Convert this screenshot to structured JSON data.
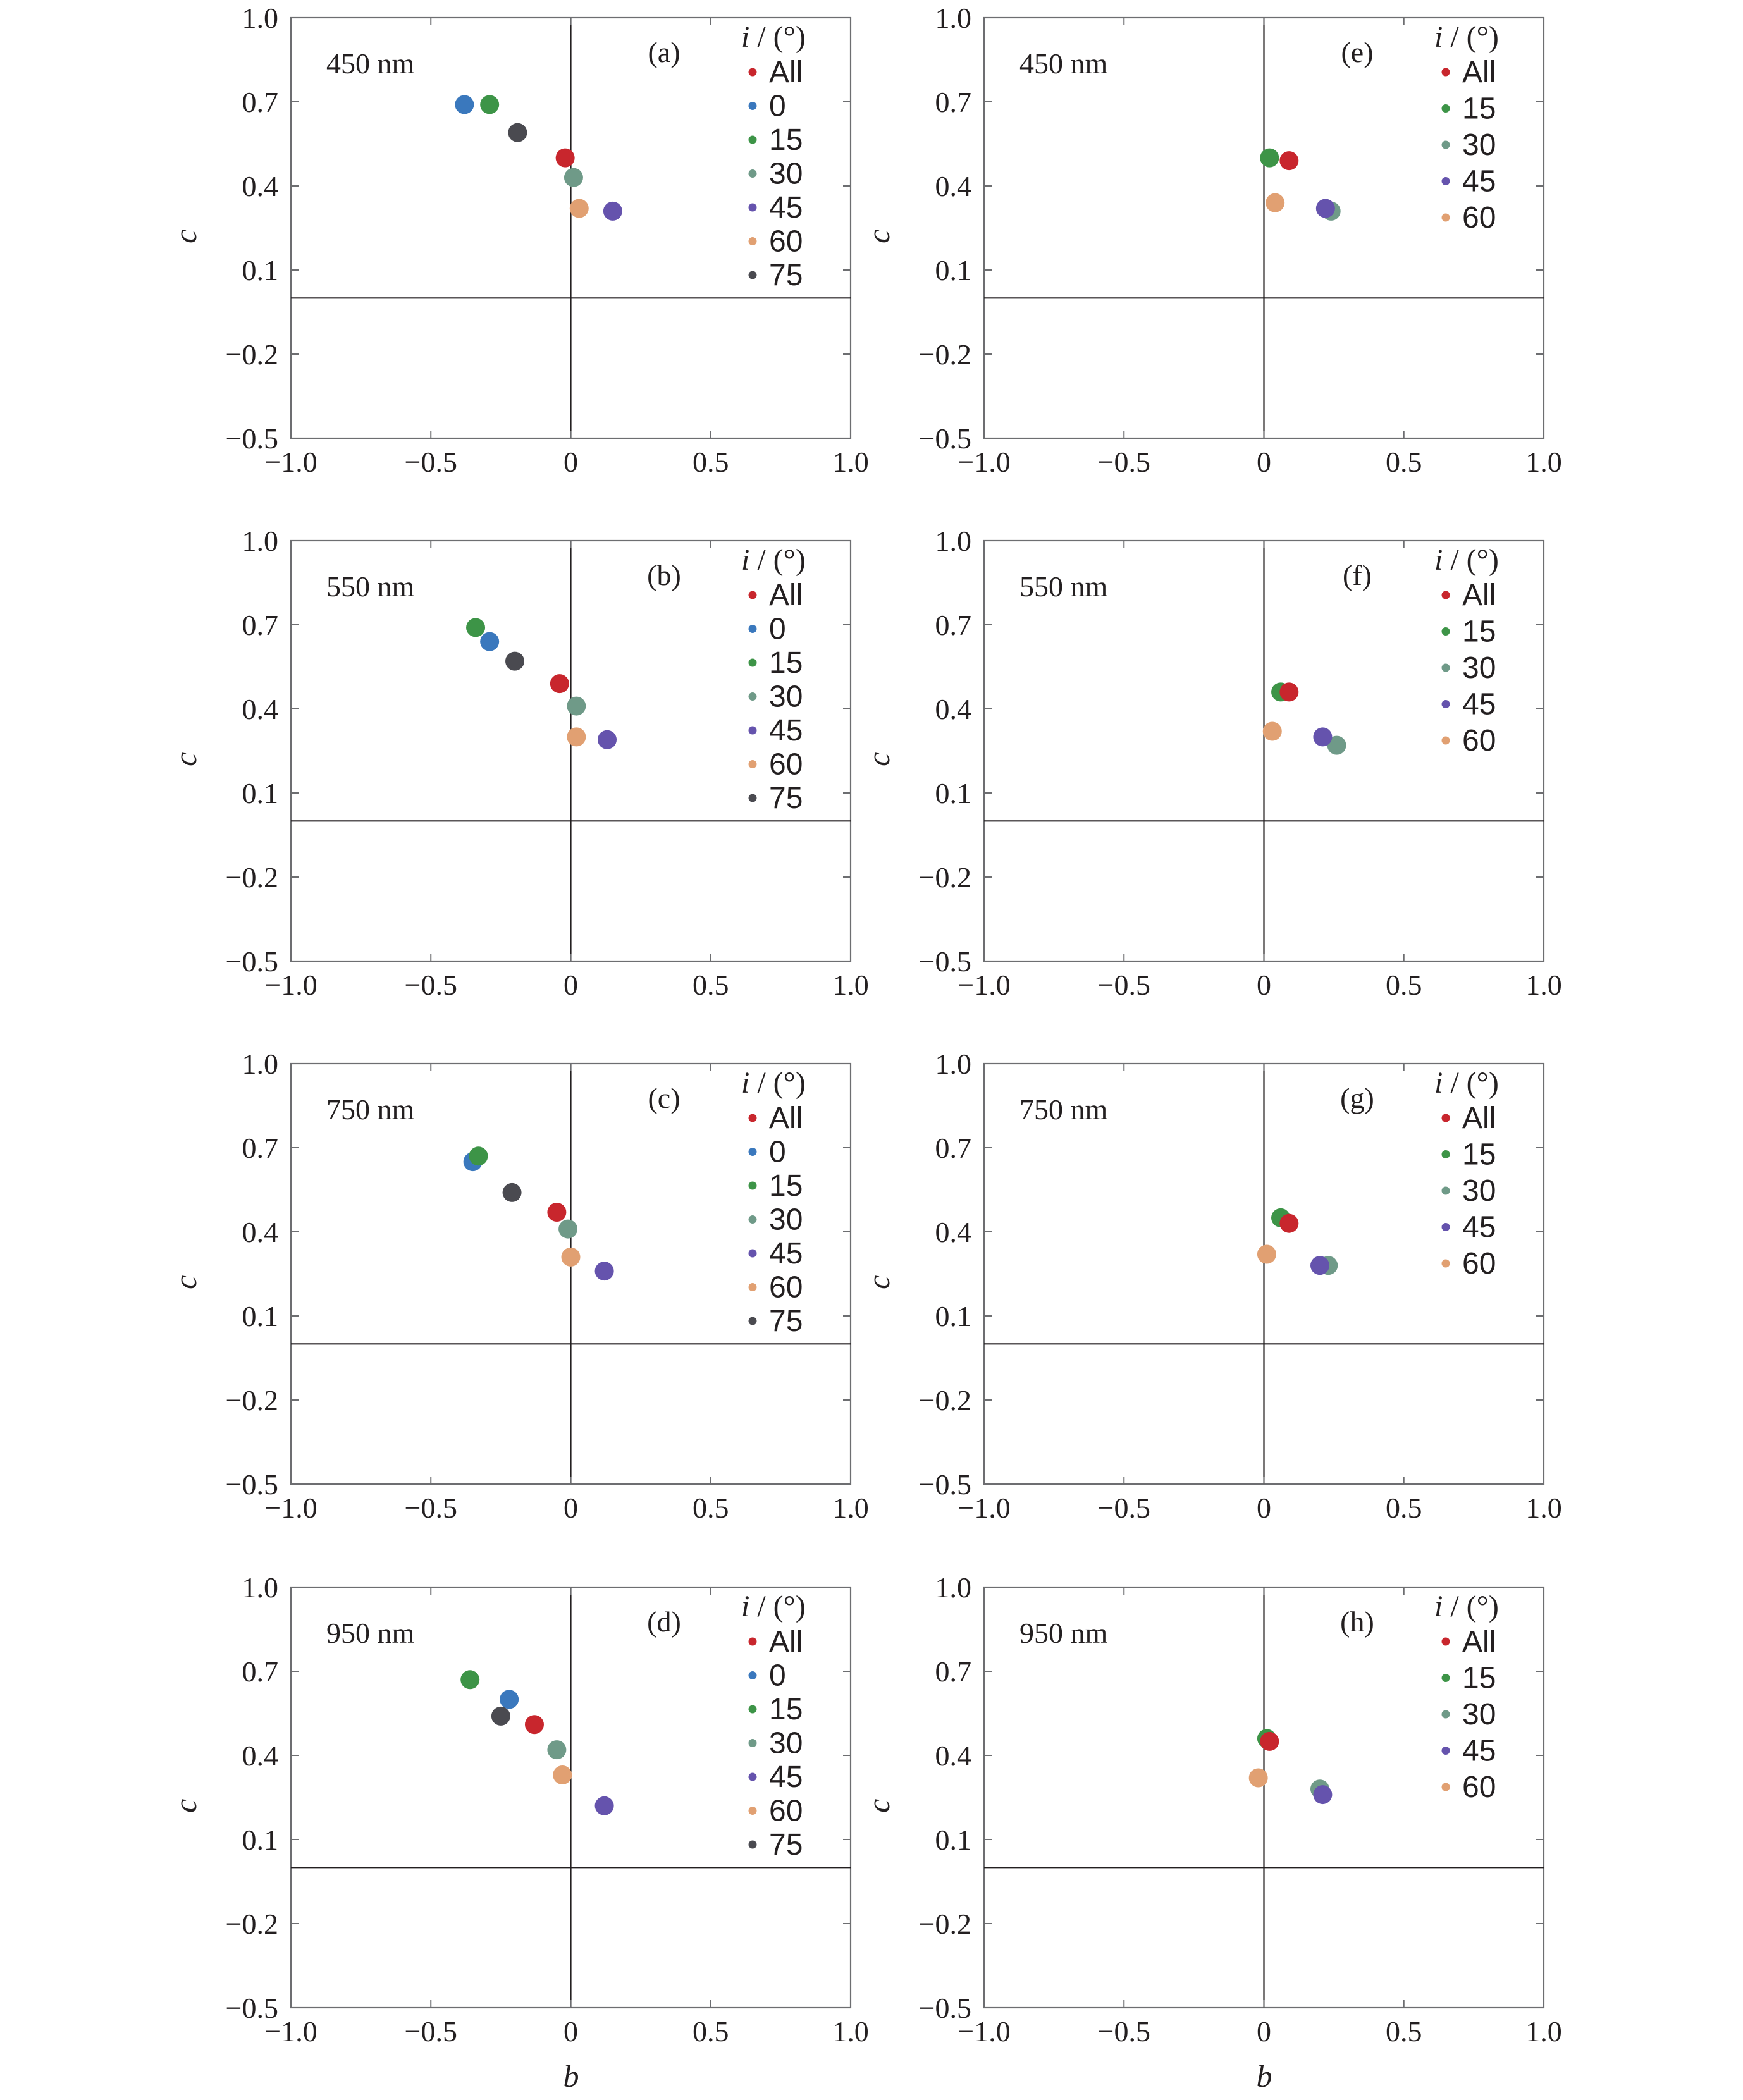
{
  "figure": {
    "xlabel": "b",
    "ylabel": "c",
    "legend_title_prefix": "i",
    "legend_title_suffix": " / (°)"
  },
  "colors": {
    "All": "#c8262d",
    "0": "#3a78bd",
    "15": "#3d9447",
    "30": "#6f9a88",
    "45": "#6553ad",
    "60": "#e1a072",
    "75": "#4a4a50"
  },
  "chart_data": [
    {
      "type": "scatter",
      "panel": "(a)",
      "wavelength": "450 nm",
      "xlim": [
        -1.0,
        1.0
      ],
      "ylim": [
        -0.5,
        1.0
      ],
      "xticks": [
        "−1.0",
        "−0.5",
        "0",
        "0.5",
        "1.0"
      ],
      "yticks": [
        "1.0",
        "0.7",
        "0.4",
        "0.1",
        "−0.2",
        "−0.5"
      ],
      "legend": [
        "All",
        "0",
        "15",
        "30",
        "45",
        "60",
        "75"
      ],
      "points": [
        {
          "series": "All",
          "x": -0.02,
          "y": 0.5
        },
        {
          "series": "0",
          "x": -0.38,
          "y": 0.69
        },
        {
          "series": "15",
          "x": -0.29,
          "y": 0.69
        },
        {
          "series": "30",
          "x": 0.01,
          "y": 0.43
        },
        {
          "series": "45",
          "x": 0.15,
          "y": 0.31
        },
        {
          "series": "60",
          "x": 0.03,
          "y": 0.32
        },
        {
          "series": "75",
          "x": -0.19,
          "y": 0.59
        }
      ]
    },
    {
      "type": "scatter",
      "panel": "(b)",
      "wavelength": "550 nm",
      "xlim": [
        -1.0,
        1.0
      ],
      "ylim": [
        -0.5,
        1.0
      ],
      "xticks": [
        "−1.0",
        "−0.5",
        "0",
        "0.5",
        "1.0"
      ],
      "yticks": [
        "1.0",
        "0.7",
        "0.4",
        "0.1",
        "−0.2",
        "−0.5"
      ],
      "legend": [
        "All",
        "0",
        "15",
        "30",
        "45",
        "60",
        "75"
      ],
      "points": [
        {
          "series": "All",
          "x": -0.04,
          "y": 0.49
        },
        {
          "series": "0",
          "x": -0.29,
          "y": 0.64
        },
        {
          "series": "15",
          "x": -0.34,
          "y": 0.69
        },
        {
          "series": "30",
          "x": 0.02,
          "y": 0.41
        },
        {
          "series": "45",
          "x": 0.13,
          "y": 0.29
        },
        {
          "series": "60",
          "x": 0.02,
          "y": 0.3
        },
        {
          "series": "75",
          "x": -0.2,
          "y": 0.57
        }
      ]
    },
    {
      "type": "scatter",
      "panel": "(c)",
      "wavelength": "750 nm",
      "xlim": [
        -1.0,
        1.0
      ],
      "ylim": [
        -0.5,
        1.0
      ],
      "xticks": [
        "−1.0",
        "−0.5",
        "0",
        "0.5",
        "1.0"
      ],
      "yticks": [
        "1.0",
        "0.7",
        "0.4",
        "0.1",
        "−0.2",
        "−0.5"
      ],
      "legend": [
        "All",
        "0",
        "15",
        "30",
        "45",
        "60",
        "75"
      ],
      "points": [
        {
          "series": "All",
          "x": -0.05,
          "y": 0.47
        },
        {
          "series": "0",
          "x": -0.35,
          "y": 0.65
        },
        {
          "series": "15",
          "x": -0.33,
          "y": 0.67
        },
        {
          "series": "30",
          "x": -0.01,
          "y": 0.41
        },
        {
          "series": "45",
          "x": 0.12,
          "y": 0.26
        },
        {
          "series": "60",
          "x": 0.0,
          "y": 0.31
        },
        {
          "series": "75",
          "x": -0.21,
          "y": 0.54
        }
      ]
    },
    {
      "type": "scatter",
      "panel": "(d)",
      "wavelength": "950 nm",
      "xlim": [
        -1.0,
        1.0
      ],
      "ylim": [
        -0.5,
        1.0
      ],
      "xticks": [
        "−1.0",
        "−0.5",
        "0",
        "0.5",
        "1.0"
      ],
      "yticks": [
        "1.0",
        "0.7",
        "0.4",
        "0.1",
        "−0.2",
        "−0.5"
      ],
      "legend": [
        "All",
        "0",
        "15",
        "30",
        "45",
        "60",
        "75"
      ],
      "points": [
        {
          "series": "All",
          "x": -0.13,
          "y": 0.51
        },
        {
          "series": "0",
          "x": -0.22,
          "y": 0.6
        },
        {
          "series": "15",
          "x": -0.36,
          "y": 0.67
        },
        {
          "series": "30",
          "x": -0.05,
          "y": 0.42
        },
        {
          "series": "45",
          "x": 0.12,
          "y": 0.22
        },
        {
          "series": "60",
          "x": -0.03,
          "y": 0.33
        },
        {
          "series": "75",
          "x": -0.25,
          "y": 0.54
        }
      ]
    },
    {
      "type": "scatter",
      "panel": "(e)",
      "wavelength": "450 nm",
      "xlim": [
        -1.0,
        1.0
      ],
      "ylim": [
        -0.5,
        1.0
      ],
      "xticks": [
        "−1.0",
        "−0.5",
        "0",
        "0.5",
        "1.0"
      ],
      "yticks": [
        "1.0",
        "0.7",
        "0.4",
        "0.1",
        "−0.2",
        "−0.5"
      ],
      "legend": [
        "All",
        "15",
        "30",
        "45",
        "60"
      ],
      "points": [
        {
          "series": "All",
          "x": 0.09,
          "y": 0.49
        },
        {
          "series": "15",
          "x": 0.02,
          "y": 0.5
        },
        {
          "series": "30",
          "x": 0.24,
          "y": 0.31
        },
        {
          "series": "45",
          "x": 0.22,
          "y": 0.32
        },
        {
          "series": "60",
          "x": 0.04,
          "y": 0.34
        }
      ]
    },
    {
      "type": "scatter",
      "panel": "(f)",
      "wavelength": "550 nm",
      "xlim": [
        -1.0,
        1.0
      ],
      "ylim": [
        -0.5,
        1.0
      ],
      "xticks": [
        "−1.0",
        "−0.5",
        "0",
        "0.5",
        "1.0"
      ],
      "yticks": [
        "1.0",
        "0.7",
        "0.4",
        "0.1",
        "−0.2",
        "−0.5"
      ],
      "legend": [
        "All",
        "15",
        "30",
        "45",
        "60"
      ],
      "points": [
        {
          "series": "All",
          "x": 0.09,
          "y": 0.46
        },
        {
          "series": "15",
          "x": 0.06,
          "y": 0.46
        },
        {
          "series": "30",
          "x": 0.26,
          "y": 0.27
        },
        {
          "series": "45",
          "x": 0.21,
          "y": 0.3
        },
        {
          "series": "60",
          "x": 0.03,
          "y": 0.32
        }
      ]
    },
    {
      "type": "scatter",
      "panel": "(g)",
      "wavelength": "750 nm",
      "xlim": [
        -1.0,
        1.0
      ],
      "ylim": [
        -0.5,
        1.0
      ],
      "xticks": [
        "−1.0",
        "−0.5",
        "0",
        "0.5",
        "1.0"
      ],
      "yticks": [
        "1.0",
        "0.7",
        "0.4",
        "0.1",
        "−0.2",
        "−0.5"
      ],
      "legend": [
        "All",
        "15",
        "30",
        "45",
        "60"
      ],
      "points": [
        {
          "series": "All",
          "x": 0.09,
          "y": 0.43
        },
        {
          "series": "15",
          "x": 0.06,
          "y": 0.45
        },
        {
          "series": "30",
          "x": 0.23,
          "y": 0.28
        },
        {
          "series": "45",
          "x": 0.2,
          "y": 0.28
        },
        {
          "series": "60",
          "x": 0.01,
          "y": 0.32
        }
      ]
    },
    {
      "type": "scatter",
      "panel": "(h)",
      "wavelength": "950 nm",
      "xlim": [
        -1.0,
        1.0
      ],
      "ylim": [
        -0.5,
        1.0
      ],
      "xticks": [
        "−1.0",
        "−0.5",
        "0",
        "0.5",
        "1.0"
      ],
      "yticks": [
        "1.0",
        "0.7",
        "0.4",
        "0.1",
        "−0.2",
        "−0.5"
      ],
      "legend": [
        "All",
        "15",
        "30",
        "45",
        "60"
      ],
      "points": [
        {
          "series": "All",
          "x": 0.02,
          "y": 0.45
        },
        {
          "series": "15",
          "x": 0.01,
          "y": 0.46
        },
        {
          "series": "30",
          "x": 0.2,
          "y": 0.28
        },
        {
          "series": "45",
          "x": 0.21,
          "y": 0.26
        },
        {
          "series": "60",
          "x": -0.02,
          "y": 0.32
        }
      ]
    }
  ]
}
